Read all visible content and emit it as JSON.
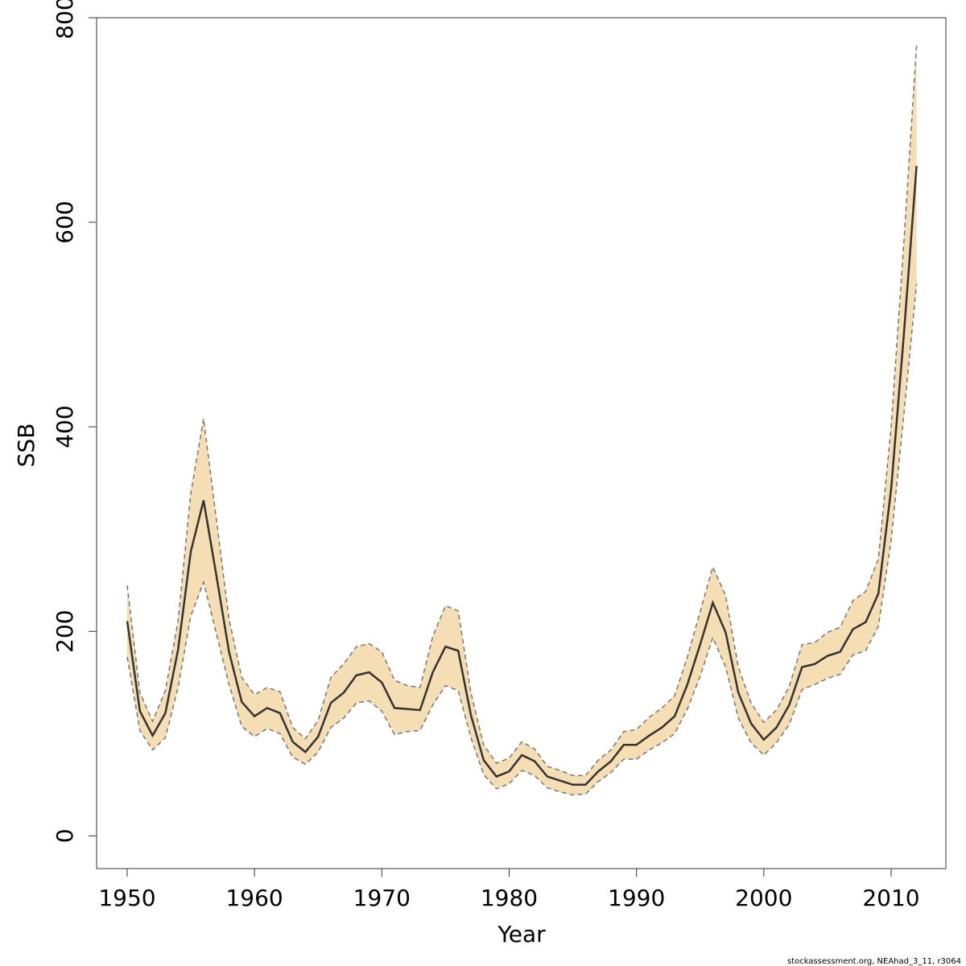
{
  "chart_data": {
    "type": "area",
    "xlabel": "Year",
    "ylabel": "SSB",
    "xlim": [
      1947.6,
      2014.3
    ],
    "ylim": [
      -32,
      800
    ],
    "xticks": [
      1950,
      1960,
      1970,
      1980,
      1990,
      2000,
      2010
    ],
    "yticks": [
      0,
      200,
      400,
      600,
      800
    ],
    "grid": false,
    "legend": "none",
    "colors": {
      "band": "#F5DEB3",
      "line": "#333333",
      "bound": "#777777",
      "axis": "#333333"
    },
    "x": [
      1950,
      1951,
      1952,
      1953,
      1954,
      1955,
      1956,
      1957,
      1958,
      1959,
      1960,
      1961,
      1962,
      1963,
      1964,
      1965,
      1966,
      1967,
      1968,
      1969,
      1970,
      1971,
      1972,
      1973,
      1974,
      1975,
      1976,
      1977,
      1978,
      1979,
      1980,
      1981,
      1982,
      1983,
      1984,
      1985,
      1986,
      1987,
      1988,
      1989,
      1990,
      1991,
      1992,
      1993,
      1994,
      1995,
      1996,
      1997,
      1998,
      1999,
      2000,
      2001,
      2002,
      2003,
      2004,
      2005,
      2006,
      2007,
      2008,
      2009,
      2010,
      2011,
      2012
    ],
    "series": [
      {
        "role": "estimate",
        "values": [
          210,
          122,
          98,
          120,
          182,
          278,
          328,
          255,
          180,
          131,
          117,
          125,
          120,
          92,
          82,
          97,
          130,
          140,
          157,
          160,
          150,
          125,
          124,
          123,
          160,
          185,
          181,
          118,
          74,
          58,
          63,
          79,
          73,
          58,
          54,
          50,
          50,
          63,
          73,
          89,
          89,
          98,
          106,
          117,
          148,
          187,
          228,
          199,
          140,
          110,
          94,
          106,
          128,
          165,
          168,
          176,
          180,
          202,
          209,
          237,
          339,
          490,
          655
        ]
      },
      {
        "role": "upper",
        "values": [
          245,
          140,
          112,
          142,
          210,
          335,
          408,
          310,
          212,
          155,
          138,
          145,
          141,
          106,
          95,
          113,
          155,
          168,
          185,
          188,
          180,
          152,
          147,
          145,
          195,
          225,
          220,
          140,
          89,
          71,
          76,
          92,
          85,
          68,
          64,
          59,
          59,
          74,
          84,
          102,
          104,
          116,
          125,
          137,
          175,
          219,
          263,
          235,
          165,
          130,
          111,
          123,
          146,
          187,
          189,
          199,
          204,
          230,
          239,
          271,
          400,
          580,
          773
        ]
      },
      {
        "role": "lower",
        "values": [
          175,
          103,
          84,
          96,
          145,
          215,
          248,
          198,
          148,
          107,
          97,
          105,
          100,
          77,
          70,
          82,
          106,
          115,
          130,
          132,
          122,
          99,
          102,
          103,
          128,
          147,
          142,
          96,
          60,
          46,
          51,
          64,
          59,
          47,
          43,
          40,
          41,
          53,
          62,
          75,
          75,
          84,
          91,
          100,
          124,
          156,
          194,
          165,
          115,
          91,
          79,
          91,
          109,
          143,
          148,
          154,
          158,
          177,
          181,
          205,
          289,
          412,
          540
        ]
      }
    ]
  },
  "footnote": "stockassessment.org, NEAhad_3_11, r3064"
}
